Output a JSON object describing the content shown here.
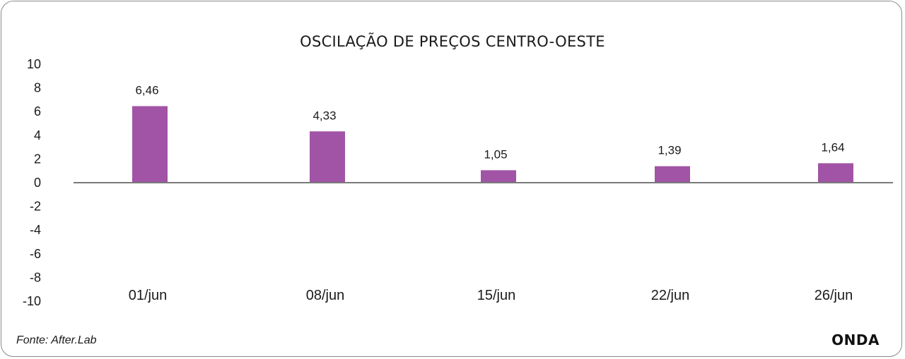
{
  "chart_data": {
    "type": "bar",
    "title": "OSCILAÇÃO DE PREÇOS CENTRO-OESTE",
    "categories": [
      "01/jun",
      "08/jun",
      "15/jun",
      "22/jun",
      "26/jun"
    ],
    "values": [
      6.46,
      4.33,
      1.05,
      1.39,
      1.64
    ],
    "data_labels": [
      "6,46",
      "4,33",
      "1,05",
      "1,39",
      "1,64"
    ],
    "y_ticks": [
      10,
      8,
      6,
      4,
      2,
      0,
      -2,
      -4,
      -6,
      -8,
      -10
    ],
    "ylim": [
      -10,
      10
    ],
    "xlabel": "",
    "ylabel": "",
    "grid": false,
    "legend": "none",
    "bar_color": "#a154a5"
  },
  "footer": {
    "source": "Fonte: After.Lab",
    "brand": "ONDA"
  }
}
